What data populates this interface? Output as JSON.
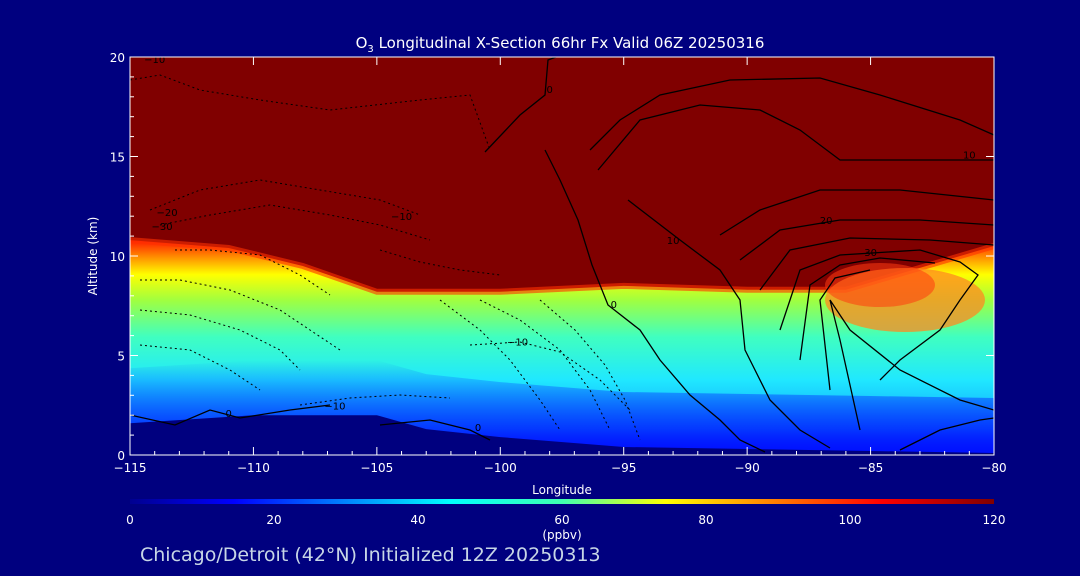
{
  "title": {
    "prefix": "O",
    "subscript": "3",
    "rest": " Longitudinal X-Section 66hr  Fx Valid 06Z 20250316"
  },
  "footer": "Chicago/Detroit (42°N) Initialized 12Z 20250313",
  "chart_data": {
    "type": "heatmap",
    "xlabel": "Longitude",
    "ylabel": "Altitude (km)",
    "xlim": [
      -115,
      -80
    ],
    "ylim": [
      0,
      20
    ],
    "x_ticks": [
      -115,
      -110,
      -105,
      -100,
      -95,
      -90,
      -85,
      -80
    ],
    "x_tick_labels": [
      "−115",
      "−110",
      "−105",
      "−100",
      "−95",
      "−90",
      "−85",
      "−80"
    ],
    "y_ticks": [
      0,
      5,
      10,
      15,
      20
    ],
    "colorbar": {
      "label": "(ppbv)",
      "range": [
        0,
        120
      ],
      "ticks": [
        0,
        20,
        40,
        60,
        80,
        100,
        120
      ]
    },
    "tropopause_height_km": [
      {
        "lon": -115,
        "alt": 10.8
      },
      {
        "lon": -111,
        "alt": 10.4
      },
      {
        "lon": -108,
        "alt": 9.5
      },
      {
        "lon": -105,
        "alt": 8.2
      },
      {
        "lon": -100,
        "alt": 8.2
      },
      {
        "lon": -95,
        "alt": 8.5
      },
      {
        "lon": -90,
        "alt": 8.3
      },
      {
        "lon": -86,
        "alt": 8.3
      },
      {
        "lon": -80,
        "alt": 10.5
      }
    ],
    "terrain_height_km": [
      {
        "lon": -115,
        "alt": 1.6
      },
      {
        "lon": -110,
        "alt": 2.0
      },
      {
        "lon": -105,
        "alt": 2.0
      },
      {
        "lon": -103,
        "alt": 1.3
      },
      {
        "lon": -100,
        "alt": 0.9
      },
      {
        "lon": -95,
        "alt": 0.4
      },
      {
        "lon": -90,
        "alt": 0.3
      },
      {
        "lon": -85,
        "alt": 0.2
      },
      {
        "lon": -80,
        "alt": 0.1
      }
    ],
    "contour_labels": [
      {
        "text": "−10",
        "lon": -114.0,
        "alt": 19.9
      },
      {
        "text": "0",
        "lon": -98.0,
        "alt": 18.4
      },
      {
        "text": "10",
        "lon": -81.0,
        "alt": 15.1
      },
      {
        "text": "−20",
        "lon": -113.5,
        "alt": 12.2
      },
      {
        "text": "−30",
        "lon": -113.7,
        "alt": 11.5
      },
      {
        "text": "−10",
        "lon": -104.0,
        "alt": 12.0
      },
      {
        "text": "20",
        "lon": -86.8,
        "alt": 11.8
      },
      {
        "text": "10",
        "lon": -93.0,
        "alt": 10.8
      },
      {
        "text": "30",
        "lon": -85.0,
        "alt": 10.2
      },
      {
        "text": "0",
        "lon": -95.4,
        "alt": 7.6
      },
      {
        "text": "−10",
        "lon": -99.3,
        "alt": 5.7
      },
      {
        "text": "−10",
        "lon": -106.7,
        "alt": 2.5
      },
      {
        "text": "0",
        "lon": -111.0,
        "alt": 2.1
      },
      {
        "text": "0",
        "lon": -100.9,
        "alt": 1.4
      }
    ]
  }
}
